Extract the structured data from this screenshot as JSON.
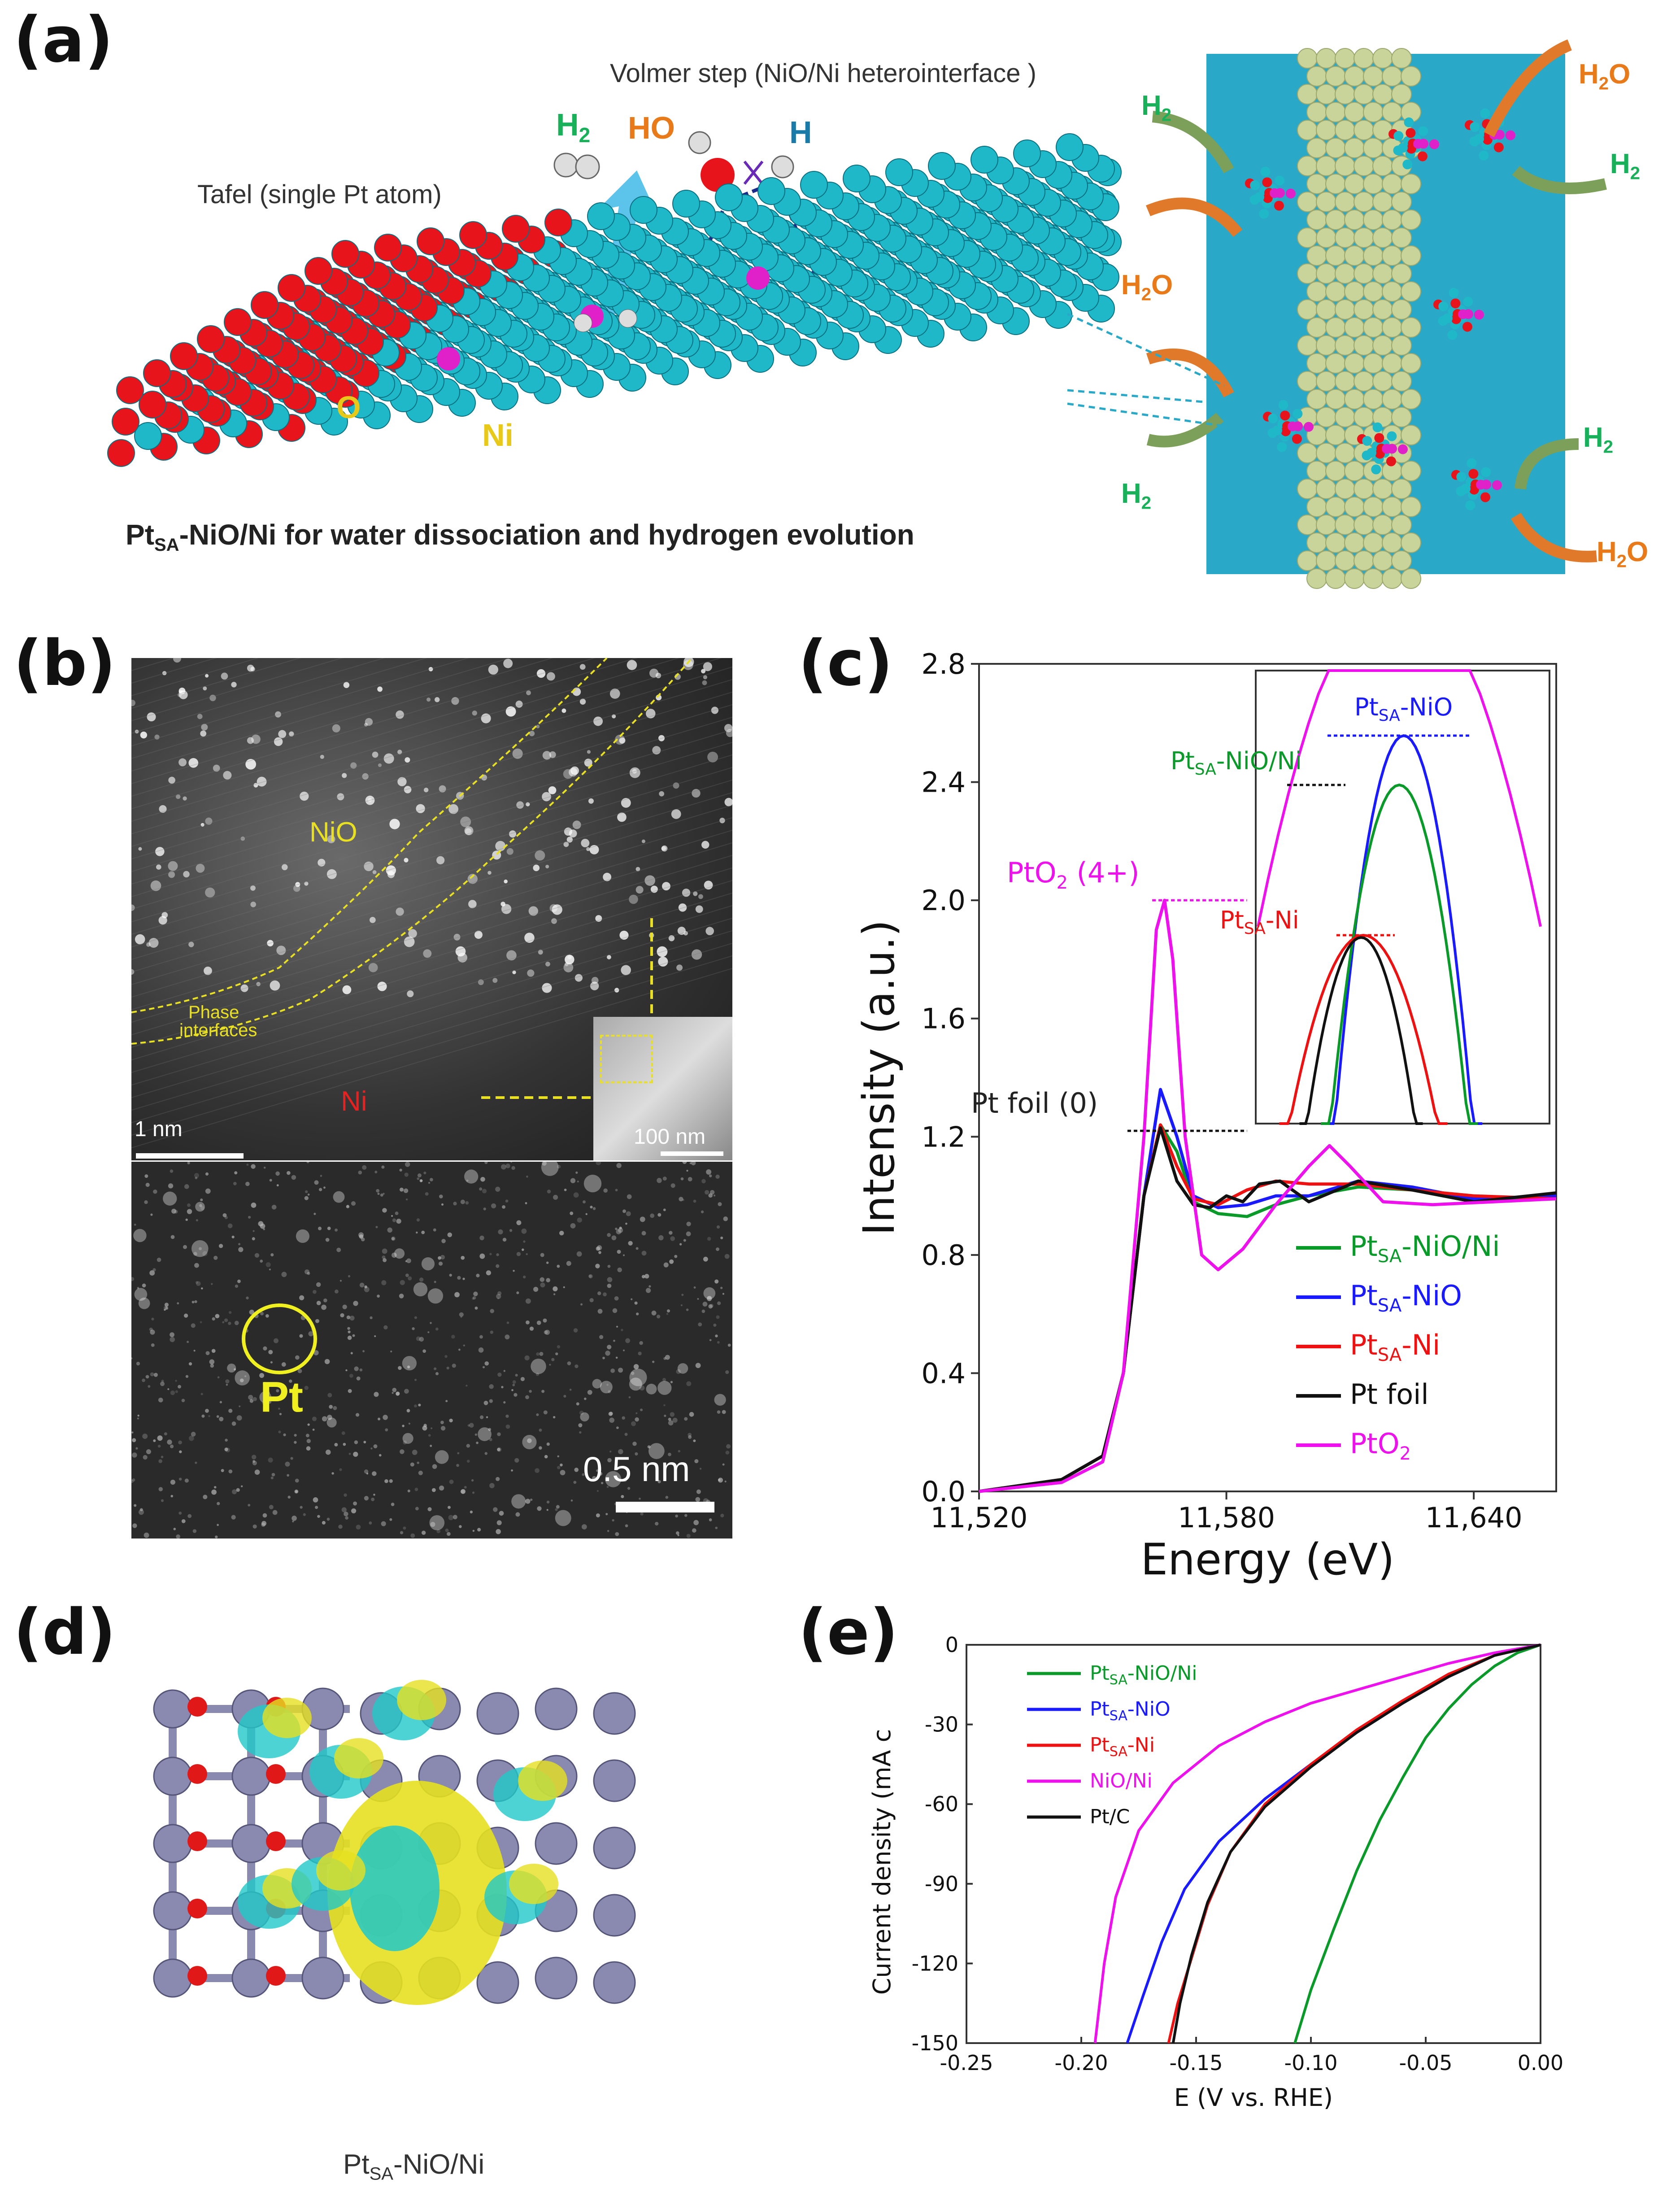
{
  "panels": {
    "a": {
      "label": "(a)",
      "volmer": "Volmer step (NiO/Ni heterointerface )",
      "tafel": "Tafel (single Pt atom)",
      "h2": "H",
      "h2_sub": "2",
      "ho": "HO",
      "h": "H",
      "o_label": "O",
      "ni_label": "Ni",
      "caption_pt": "Pt",
      "caption_sub": "SA",
      "caption_rest": "-NiO/Ni for water dissociation and hydrogen evolution",
      "h2o": "H",
      "h2o_sub": "2",
      "h2o_o": "O",
      "colors": {
        "ni": "#1fb8c8",
        "o": "#e8141c",
        "pt": "#e020c8",
        "rod": "#c9d49a",
        "bg": "#2aa8c8"
      }
    },
    "b": {
      "label": "(b)",
      "nio": "NiO",
      "ni": "Ni",
      "phase1": "Phase",
      "phase2": "interfaces",
      "scale_top": "1 nm",
      "scale_inset": "100 nm",
      "pt": "Pt",
      "scale_bottom": "0.5 nm"
    },
    "c": {
      "label": "(c)"
    },
    "d": {
      "label": "(d)",
      "caption_pt": "Pt",
      "caption_sub": "SA",
      "caption_rest": "-NiO/Ni"
    },
    "e": {
      "label": "(e)"
    }
  },
  "chart_data": [
    {
      "type": "line",
      "panel": "c",
      "xlabel": "Energy (eV)",
      "ylabel": "Intensity (a.u.)",
      "xlim": [
        11520,
        11660
      ],
      "ylim": [
        0.0,
        2.8
      ],
      "xticks": [
        "11,520",
        "11,580",
        "11,640"
      ],
      "yticks": [
        "0.0",
        "0.4",
        "0.8",
        "1.2",
        "1.6",
        "2.0",
        "2.4",
        "2.8"
      ],
      "annotations": {
        "pto2": "PtO",
        "pto2_sub": "2",
        "pto2_rest": " (4+)",
        "ptfoil": "Pt foil (0)"
      },
      "inset_labels": [
        {
          "pt": "Pt",
          "sub": "SA",
          "rest": "-NiO",
          "color": "#1a1aff"
        },
        {
          "pt": "Pt",
          "sub": "SA",
          "rest": "-NiO/Ni",
          "color": "#0a9a2a"
        },
        {
          "pt": "Pt",
          "sub": "SA",
          "rest": "-Ni",
          "color": "#ee1111"
        }
      ],
      "legend": [
        {
          "pt": "Pt",
          "sub": "SA",
          "rest": "-NiO/Ni",
          "color": "#0a9a2a"
        },
        {
          "pt": "Pt",
          "sub": "SA",
          "rest": "-NiO",
          "color": "#1a1aff"
        },
        {
          "pt": "Pt",
          "sub": "SA",
          "rest": "-Ni",
          "color": "#ee1111"
        },
        {
          "pt": "Pt foil",
          "sub": "",
          "rest": "",
          "color": "#111111"
        },
        {
          "pt": "PtO",
          "sub": "",
          "rest": "",
          "color": "#ee11ee",
          "tail": "2"
        }
      ],
      "series": [
        {
          "name": "PtSA-NiO/Ni",
          "color": "#0a9a2a",
          "points": [
            [
              11520,
              0.0
            ],
            [
              11540,
              0.04
            ],
            [
              11550,
              0.12
            ],
            [
              11555,
              0.4
            ],
            [
              11560,
              1.0
            ],
            [
              11564,
              1.24
            ],
            [
              11568,
              1.15
            ],
            [
              11572,
              0.98
            ],
            [
              11578,
              0.94
            ],
            [
              11585,
              0.93
            ],
            [
              11592,
              0.97
            ],
            [
              11600,
              1.0
            ],
            [
              11612,
              1.03
            ],
            [
              11625,
              1.02
            ],
            [
              11640,
              0.99
            ],
            [
              11660,
              0.99
            ]
          ]
        },
        {
          "name": "PtSA-NiO",
          "color": "#1a1aff",
          "points": [
            [
              11520,
              0.0
            ],
            [
              11540,
              0.04
            ],
            [
              11550,
              0.12
            ],
            [
              11555,
              0.4
            ],
            [
              11560,
              1.0
            ],
            [
              11564,
              1.36
            ],
            [
              11568,
              1.2
            ],
            [
              11572,
              1.0
            ],
            [
              11578,
              0.96
            ],
            [
              11585,
              0.97
            ],
            [
              11592,
              1.0
            ],
            [
              11600,
              1.0
            ],
            [
              11612,
              1.05
            ],
            [
              11625,
              1.03
            ],
            [
              11640,
              0.99
            ],
            [
              11660,
              1.0
            ]
          ]
        },
        {
          "name": "PtSA-Ni",
          "color": "#ee1111",
          "points": [
            [
              11520,
              0.0
            ],
            [
              11540,
              0.04
            ],
            [
              11550,
              0.12
            ],
            [
              11555,
              0.4
            ],
            [
              11560,
              1.0
            ],
            [
              11564,
              1.24
            ],
            [
              11568,
              1.1
            ],
            [
              11572,
              0.99
            ],
            [
              11578,
              0.97
            ],
            [
              11585,
              1.02
            ],
            [
              11592,
              1.05
            ],
            [
              11600,
              1.04
            ],
            [
              11612,
              1.04
            ],
            [
              11625,
              1.02
            ],
            [
              11640,
              1.0
            ],
            [
              11660,
              0.99
            ]
          ]
        },
        {
          "name": "Pt foil",
          "color": "#111111",
          "points": [
            [
              11520,
              0.0
            ],
            [
              11540,
              0.04
            ],
            [
              11550,
              0.12
            ],
            [
              11555,
              0.4
            ],
            [
              11560,
              1.0
            ],
            [
              11564,
              1.23
            ],
            [
              11568,
              1.05
            ],
            [
              11572,
              0.97
            ],
            [
              11576,
              0.96
            ],
            [
              11580,
              1.0
            ],
            [
              11584,
              0.98
            ],
            [
              11588,
              1.04
            ],
            [
              11593,
              1.05
            ],
            [
              11600,
              0.98
            ],
            [
              11612,
              1.05
            ],
            [
              11625,
              1.02
            ],
            [
              11640,
              0.98
            ],
            [
              11660,
              1.01
            ]
          ]
        },
        {
          "name": "PtO2",
          "color": "#ee11ee",
          "points": [
            [
              11520,
              0.0
            ],
            [
              11540,
              0.03
            ],
            [
              11550,
              0.1
            ],
            [
              11555,
              0.4
            ],
            [
              11560,
              1.2
            ],
            [
              11563,
              1.9
            ],
            [
              11565,
              2.0
            ],
            [
              11567,
              1.8
            ],
            [
              11570,
              1.2
            ],
            [
              11574,
              0.8
            ],
            [
              11578,
              0.75
            ],
            [
              11584,
              0.82
            ],
            [
              11592,
              0.97
            ],
            [
              11600,
              1.1
            ],
            [
              11605,
              1.17
            ],
            [
              11610,
              1.1
            ],
            [
              11618,
              0.98
            ],
            [
              11630,
              0.97
            ],
            [
              11645,
              0.98
            ],
            [
              11660,
              0.99
            ]
          ]
        }
      ]
    },
    {
      "type": "line",
      "panel": "e",
      "xlabel": "E (V vs. RHE)",
      "ylabel": "Current density (mA c",
      "xlim": [
        -0.25,
        0.0
      ],
      "ylim": [
        -150,
        0
      ],
      "xticks": [
        "-0.25",
        "-0.20",
        "-0.15",
        "-0.10",
        "-0.05",
        "0.00"
      ],
      "yticks": [
        "0",
        "-30",
        "-60",
        "-90",
        "-120",
        "-150"
      ],
      "legend": [
        {
          "pt": "Pt",
          "sub": "SA",
          "rest": "-NiO/Ni",
          "color": "#0a9a2a"
        },
        {
          "pt": "Pt",
          "sub": "SA",
          "rest": "-NiO",
          "color": "#1a1aff"
        },
        {
          "pt": "Pt",
          "sub": "SA",
          "rest": "-Ni",
          "color": "#ee1111"
        },
        {
          "pt": "NiO/Ni",
          "sub": "",
          "rest": "",
          "color": "#ee11ee"
        },
        {
          "pt": "Pt/C",
          "sub": "",
          "rest": "",
          "color": "#111111"
        }
      ],
      "series": [
        {
          "name": "PtSA-NiO/Ni",
          "color": "#0a9a2a",
          "points": [
            [
              0.0,
              0
            ],
            [
              -0.01,
              -3
            ],
            [
              -0.02,
              -8
            ],
            [
              -0.03,
              -15
            ],
            [
              -0.04,
              -24
            ],
            [
              -0.05,
              -35
            ],
            [
              -0.06,
              -50
            ],
            [
              -0.07,
              -66
            ],
            [
              -0.08,
              -85
            ],
            [
              -0.09,
              -107
            ],
            [
              -0.1,
              -130
            ],
            [
              -0.107,
              -150
            ]
          ]
        },
        {
          "name": "PtSA-NiO",
          "color": "#1a1aff",
          "points": [
            [
              0.0,
              0
            ],
            [
              -0.02,
              -4
            ],
            [
              -0.04,
              -12
            ],
            [
              -0.06,
              -22
            ],
            [
              -0.08,
              -33
            ],
            [
              -0.1,
              -45
            ],
            [
              -0.12,
              -58
            ],
            [
              -0.14,
              -74
            ],
            [
              -0.155,
              -92
            ],
            [
              -0.165,
              -112
            ],
            [
              -0.173,
              -132
            ],
            [
              -0.18,
              -150
            ]
          ]
        },
        {
          "name": "PtSA-Ni",
          "color": "#ee1111",
          "points": [
            [
              0.0,
              0
            ],
            [
              -0.02,
              -4
            ],
            [
              -0.04,
              -11
            ],
            [
              -0.06,
              -21
            ],
            [
              -0.08,
              -32
            ],
            [
              -0.1,
              -45
            ],
            [
              -0.12,
              -60
            ],
            [
              -0.135,
              -78
            ],
            [
              -0.145,
              -98
            ],
            [
              -0.152,
              -118
            ],
            [
              -0.158,
              -135
            ],
            [
              -0.162,
              -150
            ]
          ]
        },
        {
          "name": "NiO/Ni",
          "color": "#ee11ee",
          "points": [
            [
              0.0,
              0
            ],
            [
              -0.02,
              -3
            ],
            [
              -0.04,
              -7
            ],
            [
              -0.06,
              -12
            ],
            [
              -0.08,
              -17
            ],
            [
              -0.1,
              -22
            ],
            [
              -0.12,
              -29
            ],
            [
              -0.14,
              -38
            ],
            [
              -0.16,
              -52
            ],
            [
              -0.175,
              -70
            ],
            [
              -0.185,
              -95
            ],
            [
              -0.19,
              -120
            ],
            [
              -0.194,
              -150
            ]
          ]
        },
        {
          "name": "Pt/C",
          "color": "#111111",
          "points": [
            [
              0.0,
              0
            ],
            [
              -0.02,
              -4
            ],
            [
              -0.04,
              -12
            ],
            [
              -0.06,
              -22
            ],
            [
              -0.08,
              -33
            ],
            [
              -0.1,
              -46
            ],
            [
              -0.12,
              -61
            ],
            [
              -0.135,
              -78
            ],
            [
              -0.145,
              -97
            ],
            [
              -0.152,
              -117
            ],
            [
              -0.157,
              -135
            ],
            [
              -0.16,
              -150
            ]
          ]
        }
      ]
    }
  ]
}
